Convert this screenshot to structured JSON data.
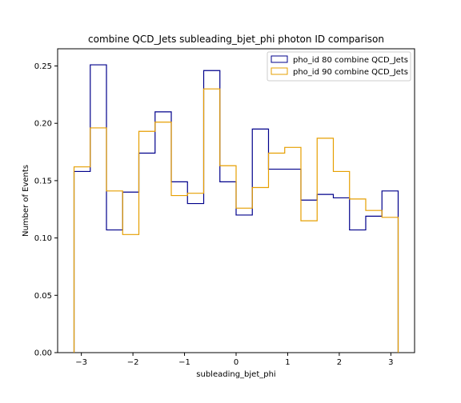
{
  "chart_data": {
    "type": "histogram",
    "title": "combine QCD_Jets subleading_bjet_phi photon ID comparison",
    "xlabel": "subleading_bjet_phi",
    "ylabel": "Number of Events",
    "xlim": [
      -3.46,
      3.46
    ],
    "ylim": [
      0,
      0.265
    ],
    "xticks": [
      -3,
      -2,
      -1,
      0,
      1,
      2,
      3
    ],
    "xtick_labels": [
      "−3",
      "−2",
      "−1",
      "0",
      "1",
      "2",
      "3"
    ],
    "yticks": [
      0,
      0.05,
      0.1,
      0.15,
      0.2,
      0.25
    ],
    "ytick_labels": [
      "0.00",
      "0.05",
      "0.10",
      "0.15",
      "0.20",
      "0.25"
    ],
    "bin_edges": [
      -3.1416,
      -2.8274,
      -2.5133,
      -2.1991,
      -1.885,
      -1.5708,
      -1.2566,
      -0.9425,
      -0.6283,
      -0.3142,
      0.0,
      0.3142,
      0.6283,
      0.9425,
      1.2566,
      1.5708,
      1.885,
      2.1991,
      2.5133,
      2.8274,
      3.1416
    ],
    "legend_position": "upper right",
    "series": [
      {
        "name": "pho_id 80 combine QCD_Jets",
        "color": "#00008b",
        "values": [
          0.158,
          0.251,
          0.107,
          0.14,
          0.174,
          0.21,
          0.149,
          0.13,
          0.246,
          0.149,
          0.12,
          0.195,
          0.16,
          0.16,
          0.133,
          0.138,
          0.135,
          0.107,
          0.119,
          0.141
        ]
      },
      {
        "name": "pho_id 90 combine QCD_Jets",
        "color": "#e69f00",
        "values": [
          0.162,
          0.196,
          0.141,
          0.103,
          0.193,
          0.201,
          0.137,
          0.139,
          0.23,
          0.163,
          0.126,
          0.144,
          0.174,
          0.179,
          0.115,
          0.187,
          0.158,
          0.134,
          0.124,
          0.118
        ]
      }
    ]
  }
}
